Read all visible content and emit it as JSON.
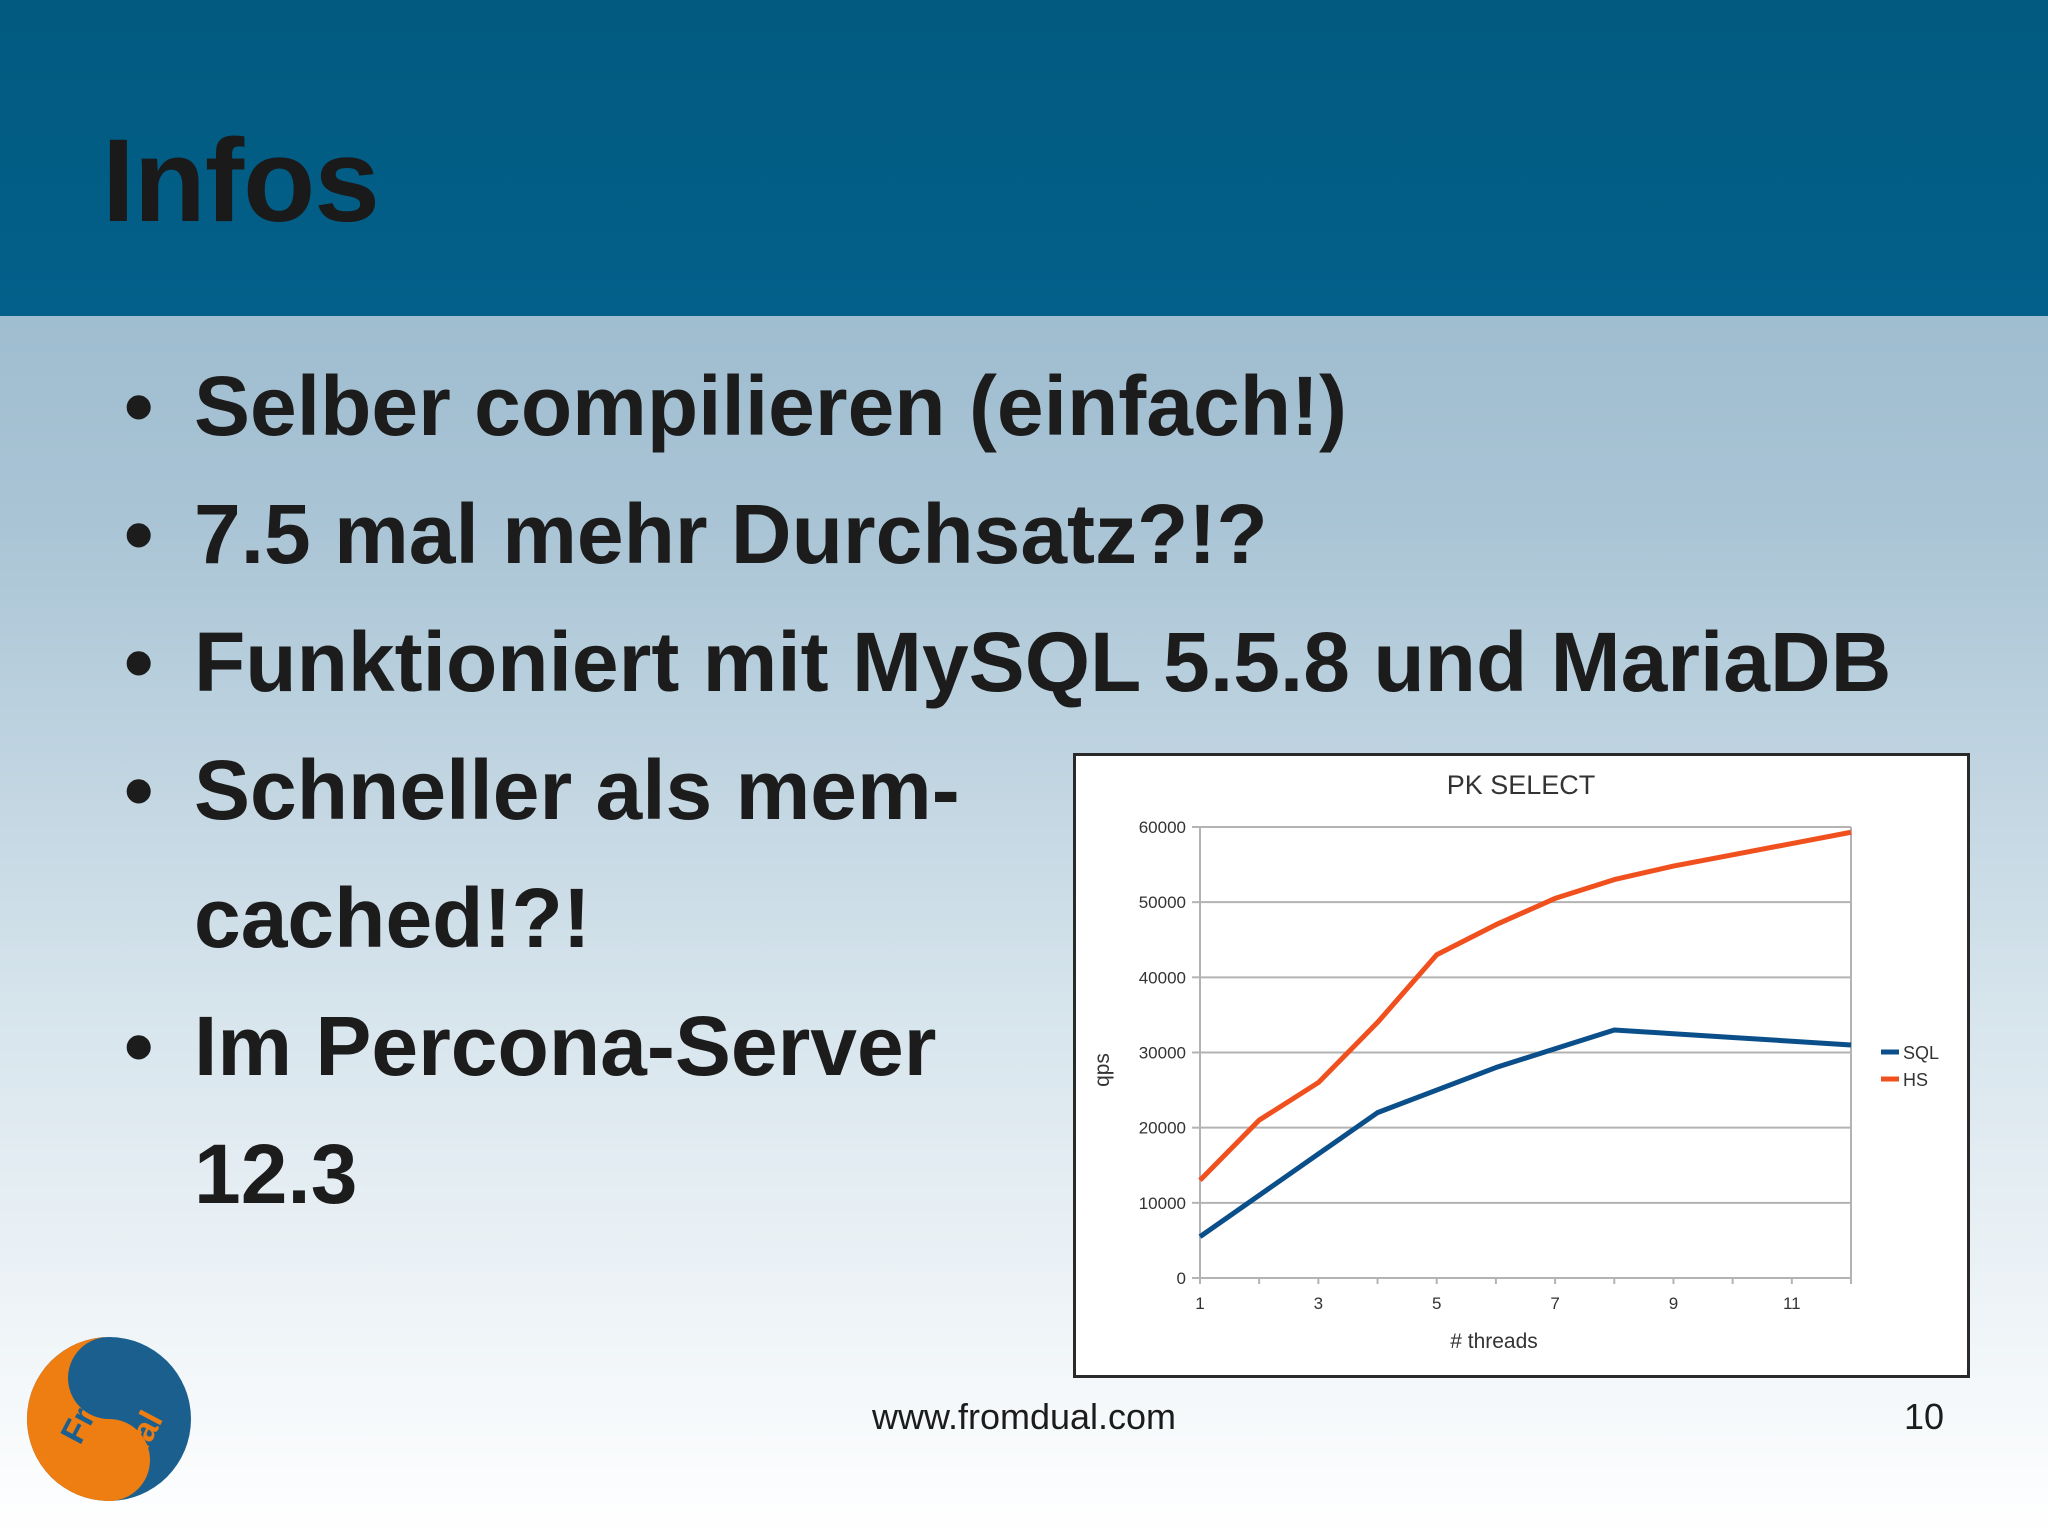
{
  "slide": {
    "title": "Infos",
    "bullets": [
      "Selber compilieren (einfach!)",
      "7.5 mal mehr Durchsatz?!?",
      "Funktioniert mit MySQL 5.5.8 und MariaDB",
      "Schneller als mem-",
      "Im Percona-Server"
    ],
    "bullet_continuations": [
      "cached!?!",
      "12.3"
    ],
    "bullet_symbol": "•"
  },
  "footer": {
    "url": "www.fromdual.com",
    "page": "10"
  },
  "logo": {
    "word1": "From",
    "word2": "Dual",
    "colors": {
      "orange": "#ee7d12",
      "blue": "#1b5f8e"
    }
  },
  "colors": {
    "title_bar": "#025a80",
    "text": "#1c1c1c"
  },
  "chart_data": {
    "type": "line",
    "title": "PK SELECT",
    "xlabel": "# threads",
    "ylabel": "qps",
    "x": [
      1,
      2,
      3,
      4,
      5,
      6,
      7,
      8,
      9,
      10,
      11,
      12
    ],
    "xticks": [
      1,
      3,
      5,
      7,
      9,
      11
    ],
    "xlim": [
      1,
      12
    ],
    "yticks": [
      0,
      10000,
      20000,
      30000,
      40000,
      50000,
      60000
    ],
    "ylim": [
      0,
      60000
    ],
    "grid": "horizontal",
    "legend": "right",
    "series": [
      {
        "name": "SQL",
        "color": "#0b4f8a",
        "values": [
          5500,
          11000,
          16500,
          22000,
          25000,
          28000,
          30500,
          33000,
          32500,
          32000,
          31500,
          31000
        ]
      },
      {
        "name": "HS",
        "color": "#f0501e",
        "values": [
          13000,
          21000,
          26000,
          34000,
          43000,
          47000,
          50500,
          53000,
          54800,
          56300,
          57800,
          59300
        ]
      }
    ]
  }
}
